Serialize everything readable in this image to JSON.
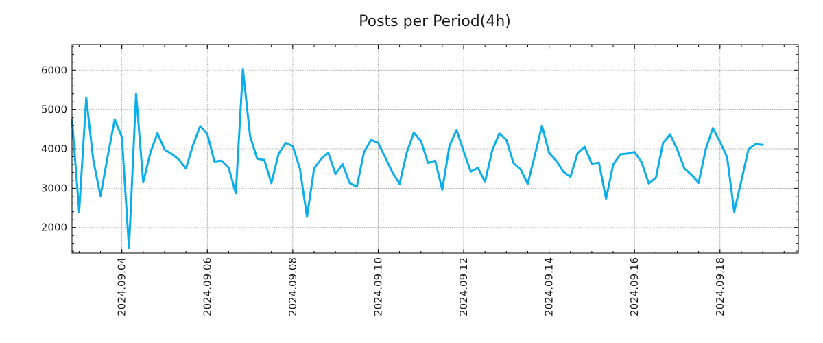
{
  "chart_data": {
    "type": "line",
    "title": "Posts per Period(4h)",
    "xlabel": "",
    "ylabel": "",
    "grid": true,
    "ylim": [
      1350,
      6650
    ],
    "xlim": [
      "2024.09.02 20:00",
      "2024.09.19 20:00"
    ],
    "x_tick_labels": [
      "2024.09.04",
      "2024.09.06",
      "2024.09.08",
      "2024.09.10",
      "2024.09.12",
      "2024.09.14",
      "2024.09.16",
      "2024.09.18"
    ],
    "y_tick_labels": [
      "2000",
      "3000",
      "4000",
      "5000",
      "6000"
    ],
    "x_start": "2024.09.02 20:00",
    "x_interval_hours": 4,
    "line_color": "#0aaeea",
    "series": [
      {
        "name": "Posts",
        "values": [
          4750,
          2400,
          5300,
          3700,
          2800,
          3800,
          4750,
          4300,
          1480,
          5400,
          3150,
          3900,
          4400,
          3980,
          3870,
          3730,
          3500,
          4100,
          4580,
          4380,
          3680,
          3700,
          3520,
          2870,
          6030,
          4330,
          3750,
          3720,
          3130,
          3870,
          4150,
          4070,
          3500,
          2270,
          3500,
          3750,
          3900,
          3360,
          3610,
          3130,
          3040,
          3910,
          4230,
          4150,
          3780,
          3400,
          3110,
          3900,
          4410,
          4200,
          3640,
          3700,
          2960,
          4070,
          4480,
          3940,
          3420,
          3520,
          3160,
          3950,
          4390,
          4230,
          3640,
          3480,
          3110,
          3840,
          4590,
          3900,
          3700,
          3420,
          3290,
          3890,
          4050,
          3620,
          3650,
          2730,
          3600,
          3860,
          3880,
          3920,
          3660,
          3120,
          3270,
          4150,
          4370,
          3980,
          3500,
          3340,
          3140,
          3990,
          4530,
          4180,
          3790,
          2400,
          3190,
          3990,
          4120,
          4100
        ]
      }
    ]
  }
}
